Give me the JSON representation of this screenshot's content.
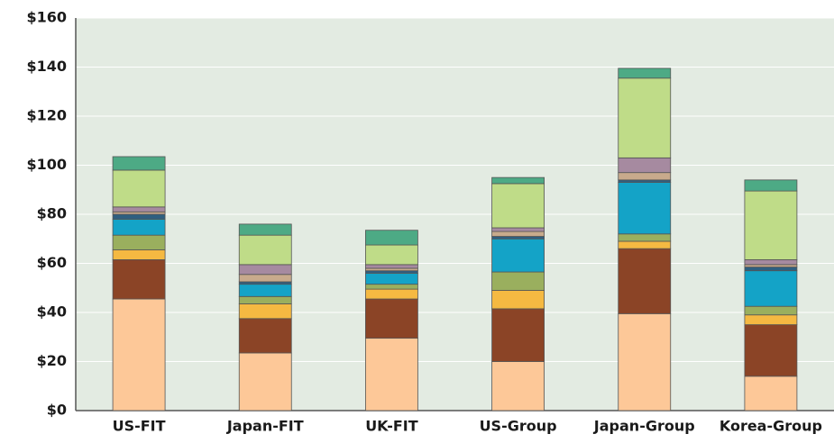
{
  "chart_data": {
    "type": "stacked_bar",
    "categories": [
      "US-FIT",
      "Japan-FIT",
      "UK-FIT",
      "US-Group",
      "Japan-Group",
      "Korea-Group"
    ],
    "series": [
      {
        "color": "#fdc898",
        "values": [
          45.5,
          23.5,
          29.5,
          20,
          39.5,
          14
        ]
      },
      {
        "color": "#8b4426",
        "values": [
          16,
          14,
          16,
          21.5,
          26.5,
          21
        ]
      },
      {
        "color": "#f5b942",
        "values": [
          4,
          6,
          4,
          7.5,
          3,
          4
        ]
      },
      {
        "color": "#9aaf5e",
        "values": [
          6,
          3,
          2,
          7.5,
          3,
          3.5
        ]
      },
      {
        "color": "#14a3c7",
        "values": [
          6.5,
          5,
          4.5,
          13.5,
          21,
          14.5
        ]
      },
      {
        "color": "#2f5f80",
        "values": [
          2,
          1,
          1,
          1,
          1,
          1.5
        ]
      },
      {
        "color": "#c8aa8c",
        "values": [
          1,
          3,
          1,
          2,
          3,
          1
        ]
      },
      {
        "color": "#a68aa0",
        "values": [
          2,
          4,
          1.5,
          1.5,
          6,
          2
        ]
      },
      {
        "color": "#bfdc88",
        "values": [
          15,
          12,
          8,
          18,
          32.5,
          28
        ]
      },
      {
        "color": "#4daa85",
        "values": [
          5.5,
          4.5,
          6,
          2.5,
          4,
          4.5
        ]
      }
    ],
    "ylim": [
      0,
      160
    ],
    "yticks": [
      {
        "value": 0,
        "label": "$0"
      },
      {
        "value": 20,
        "label": "$20"
      },
      {
        "value": 40,
        "label": "$40"
      },
      {
        "value": 60,
        "label": "$60"
      },
      {
        "value": 80,
        "label": "$80"
      },
      {
        "value": 100,
        "label": "$100"
      },
      {
        "value": 120,
        "label": "$120"
      },
      {
        "value": 140,
        "label": "$140"
      },
      {
        "value": 160,
        "label": "$160"
      }
    ],
    "grid": true
  }
}
